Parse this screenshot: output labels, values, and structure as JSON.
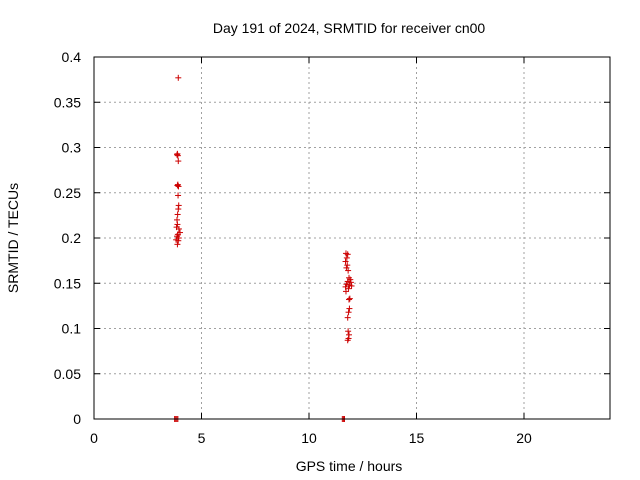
{
  "chart_data": {
    "type": "scatter",
    "title": "Day 191 of 2024, SRMTID for receiver cn00",
    "xlabel": "GPS time / hours",
    "ylabel": "SRMTID / TECUs",
    "xlim": [
      0,
      24
    ],
    "ylim": [
      0,
      0.4
    ],
    "xticks": [
      0,
      5,
      10,
      15,
      20
    ],
    "yticks": [
      0,
      0.05,
      0.1,
      0.15,
      0.2,
      0.25,
      0.3,
      0.35,
      0.4
    ],
    "xtick_labels": [
      "0",
      "5",
      "10",
      "15",
      "20"
    ],
    "ytick_labels": [
      "0",
      "0.05",
      "0.1",
      "0.15",
      "0.2",
      "0.25",
      "0.3",
      "0.35",
      "0.4"
    ],
    "grid": true,
    "marker": "plus",
    "color": "#cc0000",
    "points": [
      [
        3.92,
        0.377
      ],
      [
        3.88,
        0.293
      ],
      [
        3.9,
        0.291
      ],
      [
        3.86,
        0.292
      ],
      [
        3.92,
        0.285
      ],
      [
        3.9,
        0.259
      ],
      [
        3.93,
        0.257
      ],
      [
        3.88,
        0.258
      ],
      [
        3.91,
        0.247
      ],
      [
        3.94,
        0.236
      ],
      [
        3.92,
        0.232
      ],
      [
        3.89,
        0.226
      ],
      [
        3.86,
        0.22
      ],
      [
        3.88,
        0.215
      ],
      [
        3.84,
        0.212
      ],
      [
        3.95,
        0.21
      ],
      [
        4.0,
        0.206
      ],
      [
        3.9,
        0.204
      ],
      [
        3.86,
        0.202
      ],
      [
        3.94,
        0.2
      ],
      [
        3.82,
        0.198
      ],
      [
        3.92,
        0.197
      ],
      [
        3.88,
        0.193
      ],
      [
        3.75,
        0.0
      ],
      [
        3.8,
        0.0
      ],
      [
        3.85,
        0.0
      ],
      [
        3.9,
        0.0
      ],
      [
        11.72,
        0.183
      ],
      [
        11.8,
        0.182
      ],
      [
        11.76,
        0.178
      ],
      [
        11.7,
        0.174
      ],
      [
        11.78,
        0.17
      ],
      [
        11.74,
        0.167
      ],
      [
        11.82,
        0.164
      ],
      [
        11.86,
        0.156
      ],
      [
        11.92,
        0.154
      ],
      [
        11.8,
        0.152
      ],
      [
        11.95,
        0.151
      ],
      [
        11.74,
        0.149
      ],
      [
        11.88,
        0.148
      ],
      [
        11.7,
        0.146
      ],
      [
        11.98,
        0.147
      ],
      [
        11.84,
        0.144
      ],
      [
        11.72,
        0.141
      ],
      [
        11.9,
        0.133
      ],
      [
        11.86,
        0.132
      ],
      [
        11.88,
        0.122
      ],
      [
        11.84,
        0.118
      ],
      [
        11.8,
        0.112
      ],
      [
        11.82,
        0.097
      ],
      [
        11.86,
        0.093
      ],
      [
        11.84,
        0.089
      ],
      [
        11.8,
        0.087
      ],
      [
        11.55,
        0.0
      ],
      [
        11.6,
        0.0
      ],
      [
        11.65,
        0.0
      ]
    ]
  }
}
